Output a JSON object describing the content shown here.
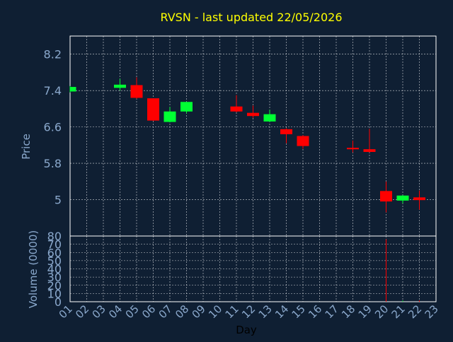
{
  "chart_data": [
    {
      "type": "candlestick",
      "title": "RVSN - last updated 22/05/2026",
      "ylabel": "Price",
      "xlabel": "Day",
      "ylim": [
        4.2,
        8.6
      ],
      "y_ticks": [
        5,
        5.8,
        6.6,
        7.4,
        8.2
      ],
      "y_tick_labels": [
        "5",
        "5.8",
        "6.6",
        "7.4",
        "8.2"
      ],
      "x_tick_labels": [
        "01",
        "02",
        "03",
        "04",
        "05",
        "06",
        "07",
        "08",
        "09",
        "10",
        "11",
        "12",
        "13",
        "14",
        "15",
        "16",
        "17",
        "18",
        "19",
        "20",
        "21",
        "22",
        "23"
      ],
      "grid": true,
      "colors": {
        "up": "#00ff33",
        "down": "#ff0000",
        "grid": "#ffffff",
        "axis_text": "#8aa8cc",
        "title": "#ffff00"
      },
      "candles": [
        {
          "day": 1,
          "open": 7.38,
          "close": 7.48,
          "high": 7.5,
          "low": 7.36
        },
        {
          "day": 4,
          "open": 7.46,
          "close": 7.53,
          "high": 7.66,
          "low": 7.4
        },
        {
          "day": 5,
          "open": 7.52,
          "close": 7.24,
          "high": 7.69,
          "low": 7.22
        },
        {
          "day": 6,
          "open": 7.23,
          "close": 6.74,
          "high": 7.23,
          "low": 6.73
        },
        {
          "day": 7,
          "open": 6.71,
          "close": 6.94,
          "high": 7.04,
          "low": 6.7
        },
        {
          "day": 8,
          "open": 6.94,
          "close": 7.15,
          "high": 7.15,
          "low": 6.9
        },
        {
          "day": 11,
          "open": 7.05,
          "close": 6.94,
          "high": 7.3,
          "low": 6.92
        },
        {
          "day": 12,
          "open": 6.91,
          "close": 6.84,
          "high": 7.07,
          "low": 6.8
        },
        {
          "day": 13,
          "open": 6.72,
          "close": 6.88,
          "high": 6.98,
          "low": 6.71
        },
        {
          "day": 14,
          "open": 6.55,
          "close": 6.44,
          "high": 6.57,
          "low": 6.24
        },
        {
          "day": 15,
          "open": 6.4,
          "close": 6.18,
          "high": 6.42,
          "low": 6.12
        },
        {
          "day": 18,
          "open": 6.14,
          "close": 6.11,
          "high": 6.3,
          "low": 6.04
        },
        {
          "day": 19,
          "open": 6.11,
          "close": 6.05,
          "high": 6.56,
          "low": 6.04
        },
        {
          "day": 20,
          "open": 5.19,
          "close": 4.96,
          "high": 5.4,
          "low": 4.72
        },
        {
          "day": 21,
          "open": 4.98,
          "close": 5.09,
          "high": 5.1,
          "low": 4.92
        },
        {
          "day": 22,
          "open": 5.05,
          "close": 4.99,
          "high": 5.2,
          "low": 4.78
        }
      ]
    },
    {
      "type": "bar",
      "ylabel": "Volume (0000)",
      "ylim": [
        0,
        80
      ],
      "y_ticks": [
        0,
        10,
        20,
        30,
        40,
        50,
        60,
        70,
        80
      ],
      "y_tick_labels": [
        "0",
        "10",
        "20",
        "30",
        "40",
        "50",
        "60",
        "70",
        "80"
      ],
      "grid": true,
      "volumes": [
        {
          "day": 20,
          "value": 76,
          "direction": "down"
        },
        {
          "day": 21,
          "value": 1.5,
          "direction": "up"
        },
        {
          "day": 22,
          "value": 1.5,
          "direction": "down"
        }
      ]
    }
  ]
}
